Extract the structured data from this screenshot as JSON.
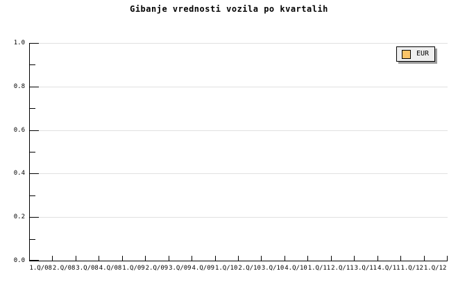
{
  "title": "Gibanje vrednosti vozila po kvartalih",
  "legend": {
    "items": [
      {
        "label": "EUR",
        "color": "#FAC468",
        "swatch_icon": "square-swatch-icon"
      }
    ],
    "background": "#efefef",
    "shadow_color": "#9c9c9c"
  },
  "y_axis": {
    "tick_labels": [
      "1.0",
      "0.8",
      "0.6",
      "0.4",
      "0.2",
      "0.0"
    ]
  },
  "x_axis": {
    "tick_labels": [
      "1.Q/08",
      "2.Q/08",
      "3.Q/08",
      "4.Q/08",
      "1.Q/09",
      "2.Q/09",
      "3.Q/09",
      "4.Q/09",
      "1.Q/10",
      "2.Q/10",
      "3.Q/10",
      "4.Q/10",
      "1.Q/11",
      "2.Q/11",
      "3.Q/11",
      "4.Q/11",
      "1.Q/12",
      "1.Q/12"
    ]
  },
  "colors": {
    "grid": "#e0e0e0",
    "axis": "#000000",
    "background": "#ffffff"
  },
  "chart_data": {
    "type": "line",
    "title": "Gibanje vrednosti vozila po kvartalih",
    "categories": [
      "1.Q/08",
      "2.Q/08",
      "3.Q/08",
      "4.Q/08",
      "1.Q/09",
      "2.Q/09",
      "3.Q/09",
      "4.Q/09",
      "1.Q/10",
      "2.Q/10",
      "3.Q/10",
      "4.Q/10",
      "1.Q/11",
      "2.Q/11",
      "3.Q/11",
      "4.Q/11",
      "1.Q/12",
      "1.Q/12"
    ],
    "series": [
      {
        "name": "EUR",
        "color": "#FAC468",
        "values": []
      }
    ],
    "xlabel": "",
    "ylabel": "",
    "ylim": [
      0,
      1
    ],
    "y_tick_step": 0.2,
    "y_minor_tick_step": 0.1,
    "grid": "horizontal-major-only",
    "legend_position": "top-right"
  }
}
